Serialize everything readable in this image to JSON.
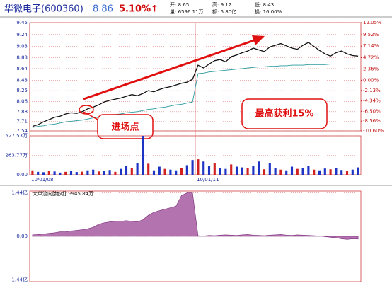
{
  "header": {
    "name": "华微电子(600360)",
    "price": "8.86",
    "change": "5.10%↑",
    "info": [
      "开: 8.65",
      "高: 9.12",
      "低: 8.43",
      "量: 6596.11万",
      "额: 5.80亿",
      "换: 16.00%"
    ]
  },
  "chart_data": [
    {
      "type": "line",
      "annotations": [
        "进场点",
        "最高获利15%"
      ],
      "x": [
        0,
        1,
        2,
        3,
        4,
        5,
        6,
        7,
        8,
        9,
        10,
        11,
        12,
        13,
        14,
        15,
        16,
        17,
        18,
        19,
        20,
        21,
        22,
        23,
        24,
        25,
        26,
        27,
        28,
        29,
        30,
        31,
        32,
        33,
        34,
        35,
        36,
        37,
        38,
        39,
        40,
        41,
        42,
        43,
        44,
        45,
        46,
        47,
        48,
        49,
        50,
        51,
        52,
        53,
        54,
        55,
        56,
        57,
        58,
        59
      ],
      "xlim": [
        0,
        60
      ],
      "xticks": [
        {
          "value": 0,
          "label": "10/01/08"
        },
        {
          "value": 30,
          "label": "10/01/11"
        }
      ],
      "series": [
        {
          "color": "#111111",
          "values": [
            7.62,
            7.65,
            7.7,
            7.74,
            7.78,
            7.8,
            7.84,
            7.86,
            7.85,
            7.88,
            7.93,
            7.96,
            8.0,
            8.05,
            8.08,
            8.1,
            8.12,
            8.15,
            8.18,
            8.16,
            8.2,
            8.25,
            8.23,
            8.27,
            8.3,
            8.32,
            8.35,
            8.38,
            8.4,
            8.45,
            8.7,
            8.65,
            8.72,
            8.78,
            8.8,
            8.76,
            8.85,
            8.88,
            8.92,
            8.95,
            9.0,
            8.97,
            8.94,
            9.02,
            9.05,
            9.08,
            9.04,
            9.0,
            8.98,
            9.05,
            9.1,
            9.03,
            8.96,
            8.9,
            8.86,
            8.92,
            8.95,
            8.9,
            8.87,
            8.86
          ]
        },
        {
          "color": "#2a9aa0",
          "values": [
            7.6,
            7.62,
            7.63,
            7.65,
            7.66,
            7.68,
            7.7,
            7.71,
            7.72,
            7.73,
            7.75,
            7.77,
            7.78,
            7.8,
            7.81,
            7.83,
            7.84,
            7.86,
            7.87,
            7.88,
            7.9,
            7.92,
            7.93,
            7.95,
            7.96,
            7.98,
            8.0,
            8.01,
            8.03,
            8.05,
            8.55,
            8.56,
            8.58,
            8.59,
            8.6,
            8.61,
            8.62,
            8.63,
            8.64,
            8.65,
            8.66,
            8.67,
            8.67,
            8.68,
            8.68,
            8.69,
            8.69,
            8.7,
            8.7,
            8.7,
            8.71,
            8.71,
            8.71,
            8.71,
            8.72,
            8.72,
            8.72,
            8.72,
            8.72,
            8.72
          ]
        }
      ],
      "ylim": [
        7.54,
        9.45
      ],
      "yticks": [
        9.45,
        9.24,
        9.03,
        8.83,
        8.64,
        8.43,
        8.25,
        8.06,
        7.88,
        7.71,
        7.54
      ],
      "y2lim": [
        -10.6,
        12.05
      ],
      "y2ticks": [
        {
          "value": 12.05,
          "label": "12.05%"
        },
        {
          "value": 9.52,
          "label": "9.52%"
        },
        {
          "value": 7.14,
          "label": "7.14%"
        },
        {
          "value": 4.72,
          "label": "4.72%"
        },
        {
          "value": 2.36,
          "label": "2.36%"
        },
        {
          "value": 0,
          "label": "0.00%"
        },
        {
          "value": -2.13,
          "label": "-2.13%"
        },
        {
          "value": -4.34,
          "label": "-4.34%"
        },
        {
          "value": -6.5,
          "label": "-6.50%"
        },
        {
          "value": -8.56,
          "label": "-8.56%"
        },
        {
          "value": -10.6,
          "label": "-10.60%"
        }
      ],
      "grid": true
    },
    {
      "type": "bar",
      "color": "#1d33c4",
      "x": [
        0,
        1,
        2,
        3,
        4,
        5,
        6,
        7,
        8,
        9,
        10,
        11,
        12,
        13,
        14,
        15,
        16,
        17,
        18,
        19,
        20,
        21,
        22,
        23,
        24,
        25,
        26,
        27,
        28,
        29,
        30,
        31,
        32,
        33,
        34,
        35,
        36,
        37,
        38,
        39,
        40,
        41,
        42,
        43,
        44,
        45,
        46,
        47,
        48,
        49,
        50,
        51,
        52,
        53,
        54,
        55,
        56,
        57,
        58,
        59
      ],
      "xlim": [
        0,
        60
      ],
      "values": [
        60,
        40,
        35,
        50,
        45,
        30,
        40,
        55,
        38,
        42,
        60,
        70,
        45,
        50,
        65,
        40,
        80,
        120,
        90,
        160,
        527,
        150,
        60,
        110,
        80,
        70,
        60,
        90,
        130,
        200,
        210,
        180,
        120,
        160,
        90,
        80,
        140,
        110,
        100,
        95,
        120,
        180,
        75,
        160,
        90,
        70,
        60,
        110,
        80,
        95,
        120,
        70,
        60,
        85,
        75,
        90,
        65,
        55,
        70,
        100
      ],
      "ylim": [
        0,
        527.53
      ],
      "yticks": [
        {
          "value": 527.53,
          "label": "527.53万"
        },
        {
          "value": 263.77,
          "label": "263.77万"
        },
        {
          "value": 0,
          "label": "0.00"
        }
      ],
      "grid": true
    },
    {
      "type": "area",
      "title": "大单流向[绝对]: -945.84万",
      "color": "#a0509a",
      "x": [
        0,
        1,
        2,
        3,
        4,
        5,
        6,
        7,
        8,
        9,
        10,
        11,
        12,
        13,
        14,
        15,
        16,
        17,
        18,
        19,
        20,
        21,
        22,
        23,
        24,
        25,
        26,
        27,
        28,
        29,
        30,
        31,
        32,
        33,
        34,
        35,
        36,
        37,
        38,
        39,
        40,
        41,
        42,
        43,
        44,
        45,
        46,
        47,
        48,
        49,
        50,
        51,
        52,
        53,
        54,
        55,
        56,
        57,
        58,
        59
      ],
      "xlim": [
        0,
        60
      ],
      "values": [
        0.05,
        0.06,
        0.08,
        0.1,
        0.12,
        0.15,
        0.15,
        0.18,
        0.2,
        0.22,
        0.25,
        0.3,
        0.4,
        0.45,
        0.48,
        0.5,
        0.5,
        0.52,
        0.5,
        0.48,
        0.55,
        0.7,
        0.8,
        0.85,
        0.9,
        0.95,
        1.0,
        1.35,
        1.44,
        1.44,
        0.02,
        0.01,
        0.03,
        0.02,
        0.04,
        0.05,
        0.04,
        0.03,
        0.05,
        0.06,
        0.04,
        0.03,
        0.02,
        0.04,
        0.05,
        0.06,
        0.04,
        0.03,
        0.05,
        0.04,
        0.03,
        0.02,
        0.01,
        -0.01,
        -0.03,
        -0.05,
        -0.08,
        -0.1,
        -0.08,
        -0.09
      ],
      "ylim": [
        -1.5,
        1.5
      ],
      "yticks": [
        {
          "value": 1.44,
          "label": "1.44亿"
        },
        {
          "value": 0,
          "label": "0.00"
        },
        {
          "value": -1.44,
          "label": "-1.44亿"
        }
      ],
      "grid": true
    }
  ]
}
